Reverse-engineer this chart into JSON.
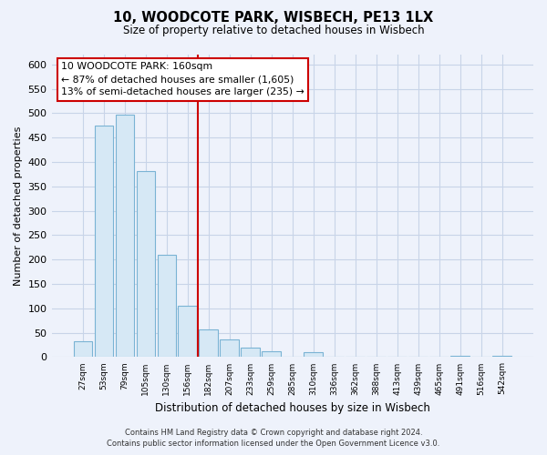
{
  "title": "10, WOODCOTE PARK, WISBECH, PE13 1LX",
  "subtitle": "Size of property relative to detached houses in Wisbech",
  "xlabel": "Distribution of detached houses by size in Wisbech",
  "ylabel": "Number of detached properties",
  "bar_labels": [
    "27sqm",
    "53sqm",
    "79sqm",
    "105sqm",
    "130sqm",
    "156sqm",
    "182sqm",
    "207sqm",
    "233sqm",
    "259sqm",
    "285sqm",
    "310sqm",
    "336sqm",
    "362sqm",
    "388sqm",
    "413sqm",
    "439sqm",
    "465sqm",
    "491sqm",
    "516sqm",
    "542sqm"
  ],
  "bar_values": [
    32,
    475,
    497,
    381,
    210,
    106,
    57,
    36,
    20,
    12,
    0,
    10,
    0,
    0,
    0,
    0,
    0,
    0,
    2,
    0,
    2
  ],
  "bar_color": "#d6e8f5",
  "bar_edge_color": "#7ab3d4",
  "vline_x": 5.5,
  "vline_color": "#cc0000",
  "annotation_title": "10 WOODCOTE PARK: 160sqm",
  "annotation_line1": "← 87% of detached houses are smaller (1,605)",
  "annotation_line2": "13% of semi-detached houses are larger (235) →",
  "annotation_box_facecolor": "#ffffff",
  "annotation_box_edgecolor": "#cc0000",
  "ylim": [
    0,
    620
  ],
  "yticks": [
    0,
    50,
    100,
    150,
    200,
    250,
    300,
    350,
    400,
    450,
    500,
    550,
    600
  ],
  "footer_line1": "Contains HM Land Registry data © Crown copyright and database right 2024.",
  "footer_line2": "Contains public sector information licensed under the Open Government Licence v3.0.",
  "bg_color": "#eef2fb",
  "grid_color": "#c8d4e8"
}
